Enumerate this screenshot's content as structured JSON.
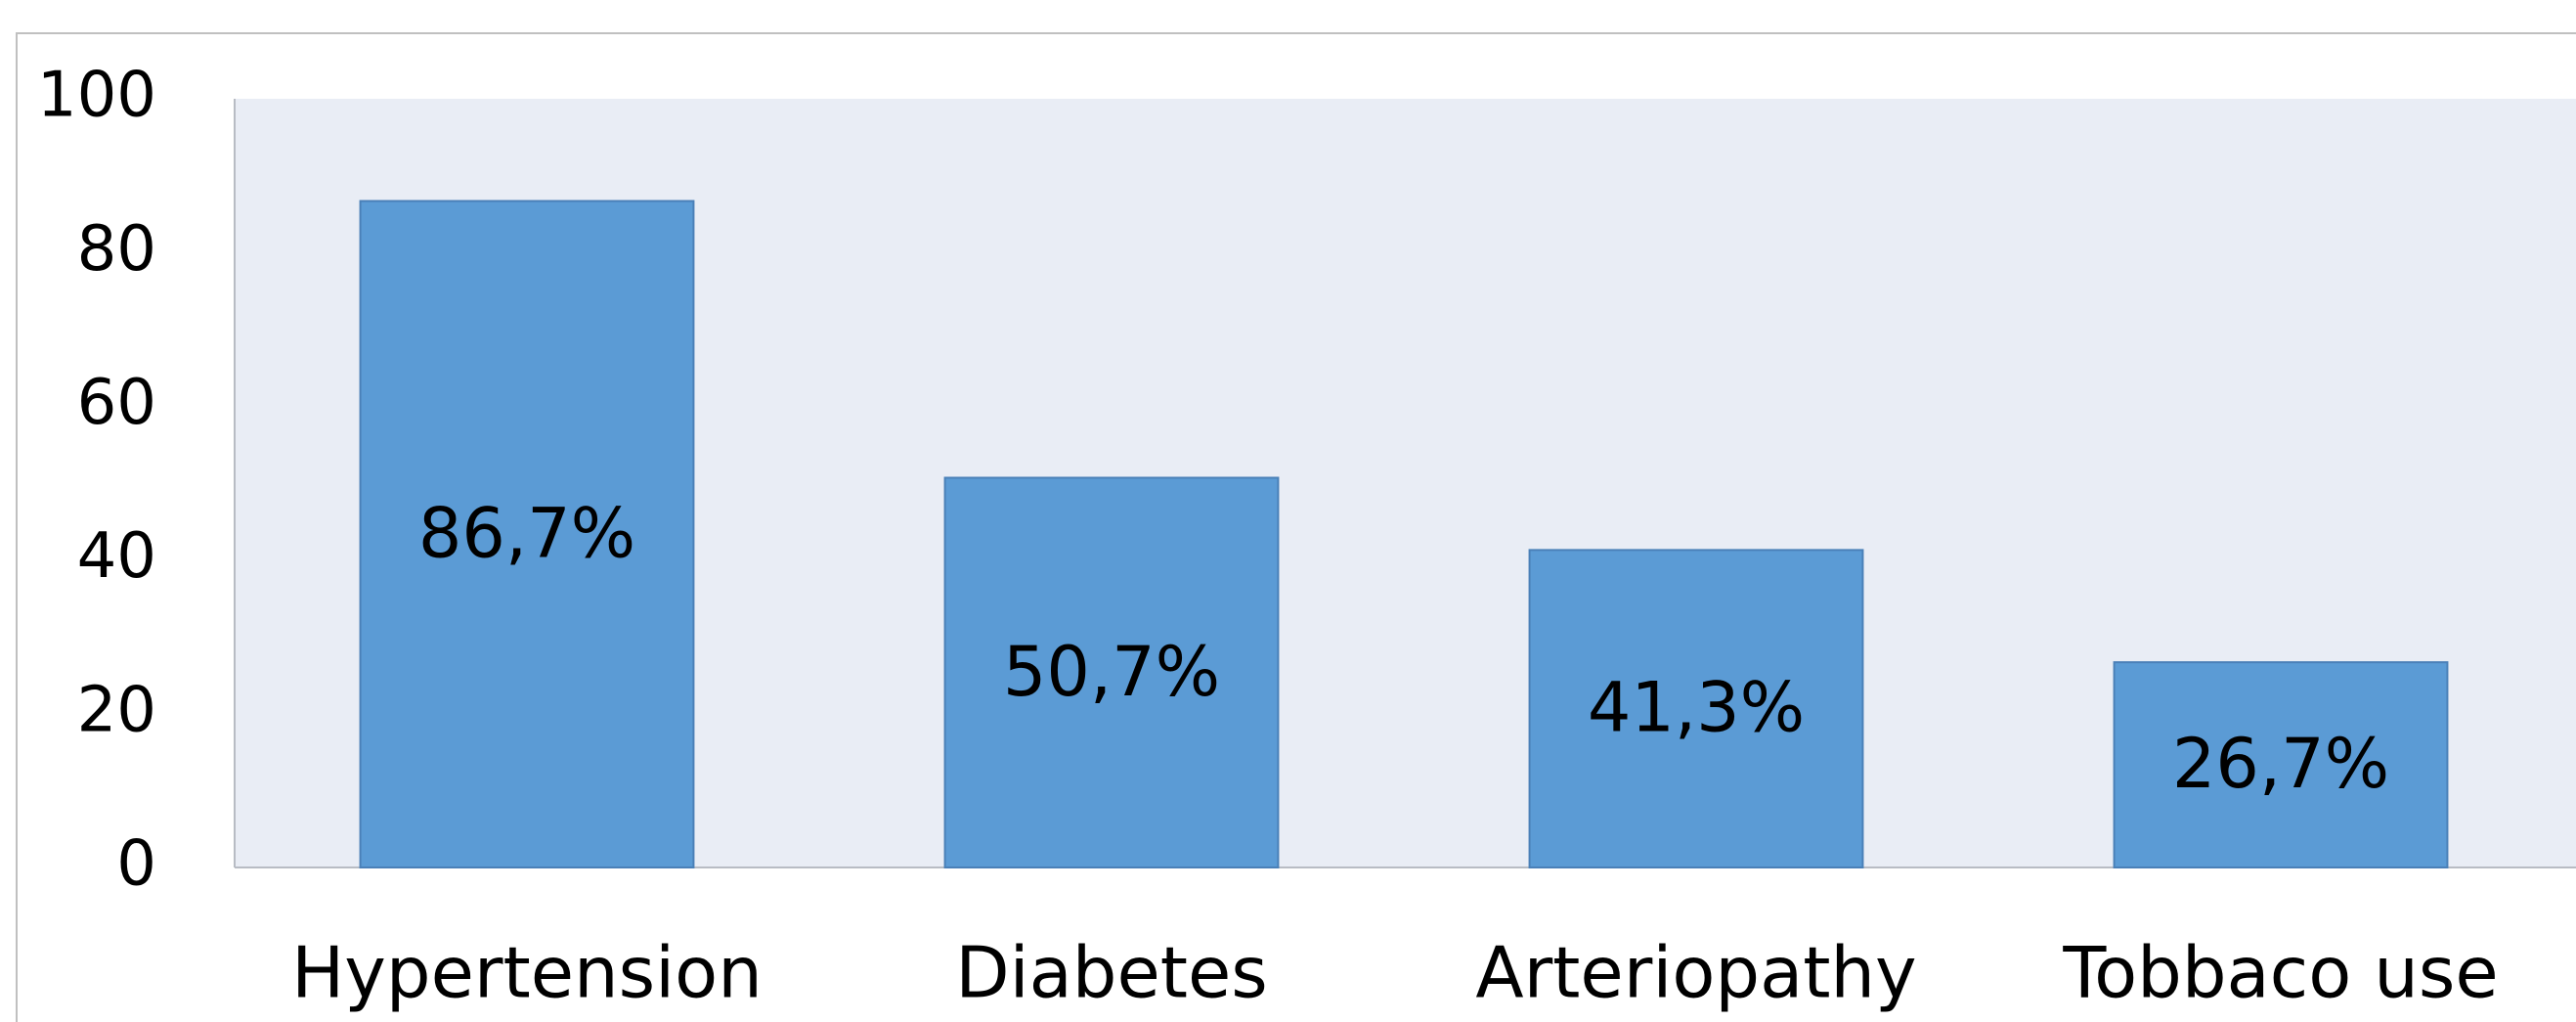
{
  "chart_data": {
    "type": "bar",
    "categories": [
      "Hypertension",
      "Diabetes",
      "Arteriopathy",
      "Tobbaco use"
    ],
    "values": [
      86.7,
      50.7,
      41.3,
      26.7
    ],
    "value_labels": [
      "86,7%",
      "50,7%",
      "41,3%",
      "26,7%"
    ],
    "color": "#5b9bd5",
    "ylim": [
      0,
      100
    ],
    "yticks": [
      0,
      20,
      40,
      60,
      80,
      100
    ],
    "grid": false
  }
}
